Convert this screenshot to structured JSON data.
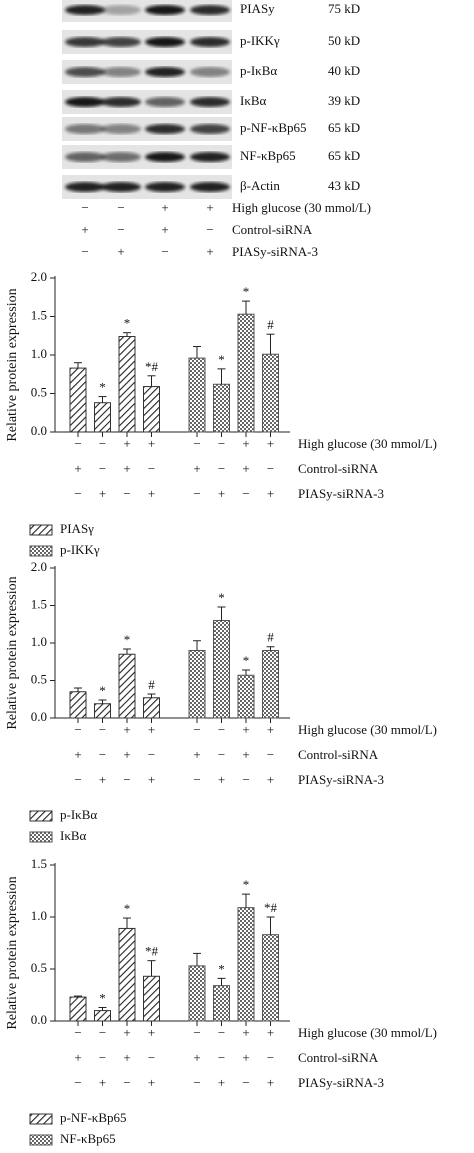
{
  "blot": {
    "rows": [
      {
        "protein": "PIASy",
        "size": "75 kD"
      },
      {
        "protein": "p-IKKγ",
        "size": "50 kD"
      },
      {
        "protein": "p-IκBα",
        "size": "40 kD"
      },
      {
        "protein": "IκBα",
        "size": "39 kD"
      },
      {
        "protein": "p-NF-κBp65",
        "size": "65 kD"
      },
      {
        "protein": "NF-κBp65",
        "size": "65 kD"
      },
      {
        "protein": "β-Actin",
        "size": "43 kD"
      }
    ],
    "conditions": [
      {
        "label": "High glucose (30 mmol/L)",
        "signs": [
          "−",
          "−",
          "+",
          "+"
        ]
      },
      {
        "label": "Control-siRNA",
        "signs": [
          "+",
          "−",
          "+",
          "−"
        ]
      },
      {
        "label": "PIASy-siRNA-3",
        "signs": [
          "−",
          "+",
          "−",
          "+"
        ]
      }
    ]
  },
  "chart_data": [
    {
      "type": "bar",
      "ylabel": "Relative protein expression",
      "ylim": [
        0,
        2
      ],
      "yticks": [
        {
          "value": 0,
          "label": "0.0"
        },
        0.5,
        {
          "value": 1,
          "label": "1.0"
        },
        1.5,
        {
          "value": 2,
          "label": "2.0"
        }
      ],
      "conditions": [
        {
          "label": "High glucose (30 mmol/L)",
          "signs": [
            "−",
            "−",
            "+",
            "+",
            "−",
            "−",
            "+",
            "+"
          ]
        },
        {
          "label": "Control-siRNA",
          "signs": [
            "+",
            "−",
            "+",
            "−",
            "+",
            "−",
            "+",
            "−"
          ]
        },
        {
          "label": "PIASy-siRNA-3",
          "signs": [
            "−",
            "+",
            "−",
            "+",
            "−",
            "+",
            "−",
            "+"
          ]
        }
      ],
      "series": [
        {
          "name": "PIASγ",
          "color": "#333333",
          "pattern": "hatch",
          "values": [
            0.83,
            0.38,
            1.24,
            0.59
          ],
          "errors": [
            0.07,
            0.08,
            0.05,
            0.14
          ],
          "annotations": [
            null,
            "*",
            "*",
            "*#"
          ]
        },
        {
          "name": "p-IKKγ",
          "color": "#555555",
          "pattern": "dots",
          "values": [
            0.96,
            0.62,
            1.53,
            1.01
          ],
          "errors": [
            0.15,
            0.2,
            0.17,
            0.26
          ],
          "annotations": [
            null,
            "*",
            "*",
            "#"
          ]
        }
      ]
    },
    {
      "type": "bar",
      "ylabel": "Relative protein expression",
      "ylim": [
        0,
        2
      ],
      "yticks": [
        {
          "value": 0,
          "label": "0.0"
        },
        0.5,
        {
          "value": 1,
          "label": "1.0"
        },
        1.5,
        {
          "value": 2,
          "label": "2.0"
        }
      ],
      "conditions": [
        {
          "label": "High glucose (30 mmol/L)",
          "signs": [
            "−",
            "−",
            "+",
            "+",
            "−",
            "−",
            "+",
            "+"
          ]
        },
        {
          "label": "Control-siRNA",
          "signs": [
            "+",
            "−",
            "+",
            "−",
            "+",
            "−",
            "+",
            "−"
          ]
        },
        {
          "label": "PIASy-siRNA-3",
          "signs": [
            "−",
            "+",
            "−",
            "+",
            "−",
            "+",
            "−",
            "+"
          ]
        }
      ],
      "series": [
        {
          "name": "p-IκBα",
          "color": "#333333",
          "pattern": "hatch",
          "values": [
            0.35,
            0.19,
            0.85,
            0.27
          ],
          "errors": [
            0.05,
            0.05,
            0.07,
            0.05
          ],
          "annotations": [
            null,
            "*",
            "*",
            "#"
          ]
        },
        {
          "name": "IκBα",
          "color": "#555555",
          "pattern": "dots",
          "values": [
            0.9,
            1.3,
            0.57,
            0.9
          ],
          "errors": [
            0.13,
            0.18,
            0.07,
            0.05
          ],
          "annotations": [
            null,
            "*",
            "*",
            "#"
          ]
        }
      ]
    },
    {
      "type": "bar",
      "ylabel": "Relative protein expression",
      "ylim": [
        0,
        1.5
      ],
      "yticks": [
        {
          "value": 0,
          "label": "0.0"
        },
        0.5,
        {
          "value": 1,
          "label": "1.0"
        },
        1.5
      ],
      "conditions": [
        {
          "label": "High glucose (30 mmol/L)",
          "signs": [
            "−",
            "−",
            "+",
            "+",
            "−",
            "−",
            "+",
            "+"
          ]
        },
        {
          "label": "Control-siRNA",
          "signs": [
            "+",
            "−",
            "+",
            "−",
            "+",
            "−",
            "+",
            "−"
          ]
        },
        {
          "label": "PIASy-siRNA-3",
          "signs": [
            "−",
            "+",
            "−",
            "+",
            "−",
            "+",
            "−",
            "+"
          ]
        }
      ],
      "series": [
        {
          "name": "p-NF-κBp65",
          "color": "#333333",
          "pattern": "hatch",
          "values": [
            0.23,
            0.1,
            0.89,
            0.43
          ],
          "errors": [
            0.01,
            0.03,
            0.1,
            0.15
          ],
          "annotations": [
            null,
            "*",
            "*",
            "*#"
          ]
        },
        {
          "name": "NF-κBp65",
          "color": "#555555",
          "pattern": "dots",
          "values": [
            0.53,
            0.34,
            1.09,
            0.83
          ],
          "errors": [
            0.12,
            0.07,
            0.13,
            0.17
          ],
          "annotations": [
            null,
            "*",
            "*",
            "*#"
          ]
        }
      ]
    }
  ]
}
